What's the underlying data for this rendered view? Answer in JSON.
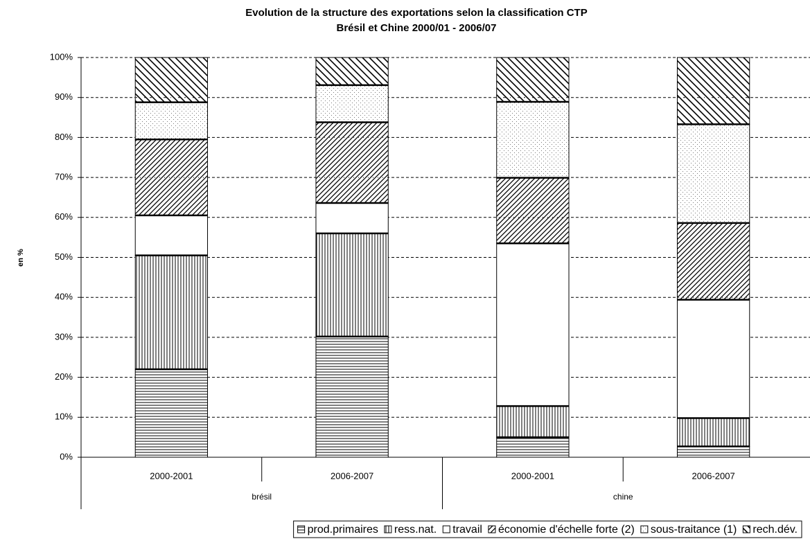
{
  "chart_data": {
    "type": "stacked-bar",
    "title": "Evolution de la structure des exportations selon la classification CTP",
    "subtitle": "Brésil et Chine 2000/01 - 2006/07",
    "y_label": "en %",
    "categories": [
      "2000-2001",
      "2006-2007",
      "2000-2001",
      "2006-2007"
    ],
    "groups": [
      "brésil",
      "chine"
    ],
    "ylim": [
      0,
      100
    ],
    "yticks": [
      {
        "value": 0,
        "label": "0%"
      },
      {
        "value": 10,
        "label": "10%"
      },
      {
        "value": 20,
        "label": "20%"
      },
      {
        "value": 30,
        "label": "30%"
      },
      {
        "value": 40,
        "label": "40%"
      },
      {
        "value": 50,
        "label": "50%"
      },
      {
        "value": 60,
        "label": "60%"
      },
      {
        "value": 70,
        "label": "70%"
      },
      {
        "value": 80,
        "label": "80%"
      },
      {
        "value": 90,
        "label": "90%"
      },
      {
        "value": 100,
        "label": "100%"
      }
    ],
    "grid": true,
    "legend": "bottom",
    "series": [
      {
        "name": "prod.primaires",
        "color": "#000000",
        "pattern": "horizontal",
        "values": [
          22,
          30.2,
          5,
          2.7
        ]
      },
      {
        "name": "ress.nat.",
        "color": "#000000",
        "pattern": "vertical",
        "values": [
          28.5,
          25.8,
          7.8,
          7.1
        ]
      },
      {
        "name": "travail",
        "color": "#000000",
        "pattern": "none",
        "values": [
          10,
          7.6,
          40.7,
          29.6
        ]
      },
      {
        "name": "économie d'échelle forte (2)",
        "color": "#000000",
        "pattern": "diagonal",
        "values": [
          19,
          20.2,
          16.4,
          19.2
        ]
      },
      {
        "name": "sous-traitance (1)",
        "color": "#000000",
        "pattern": "dots",
        "values": [
          9.3,
          9.3,
          19,
          24.7
        ]
      },
      {
        "name": "rech.dév.",
        "color": "#000000",
        "pattern": "diagonal-back",
        "values": [
          11.2,
          6.9,
          11.1,
          16.7
        ]
      }
    ]
  }
}
